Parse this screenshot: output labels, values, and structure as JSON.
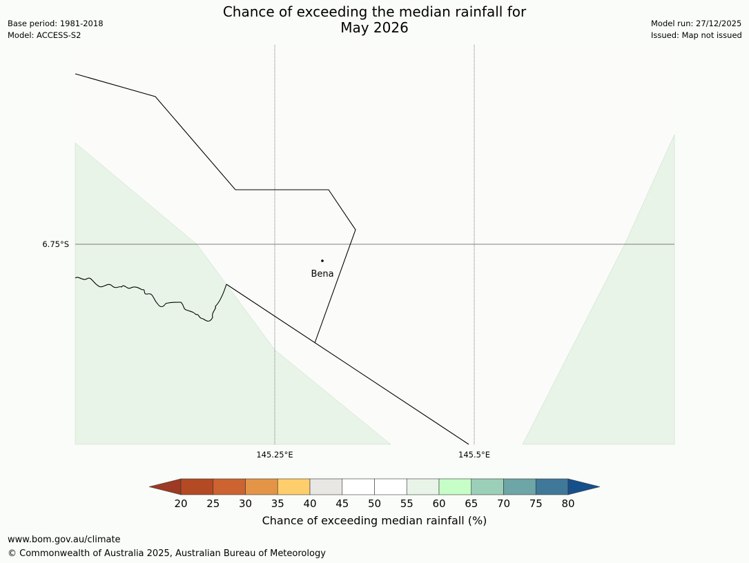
{
  "header": {
    "title_line1": "Chance of exceeding the median rainfall for",
    "title_line2": "May 2026",
    "base_period": "Base period: 1981-2018",
    "model": "Model: ACCESS-S2",
    "model_run": "Model run: 27/12/2025",
    "issued": "Issued: Map not issued"
  },
  "map": {
    "lat_label": "6.75°S",
    "lon_labels": [
      "145.25°E",
      "145.5°E"
    ],
    "place": {
      "name": "Bena"
    },
    "colors": {
      "land": "#fbfcfa",
      "favour_wet": "#e9f4e8",
      "border": "#000000",
      "grid": "#555555"
    }
  },
  "colorbar": {
    "ticks": [
      "20",
      "25",
      "30",
      "35",
      "40",
      "45",
      "50",
      "55",
      "60",
      "65",
      "70",
      "75",
      "80"
    ],
    "colors": [
      "#9c3a24",
      "#b34a24",
      "#cc6330",
      "#e39446",
      "#fdce6b",
      "#e8e7e4",
      "#ffffff",
      "#ffffff",
      "#e9f4e8",
      "#c7fdc7",
      "#9ccfb7",
      "#6ea5a6",
      "#407899",
      "#16508a"
    ],
    "label": "Chance of exceeding median rainfall (%)"
  },
  "footer": {
    "site": "www.bom.gov.au/climate",
    "copyright": "© Commonwealth of Australia 2025, Australian Bureau of Meteorology"
  }
}
